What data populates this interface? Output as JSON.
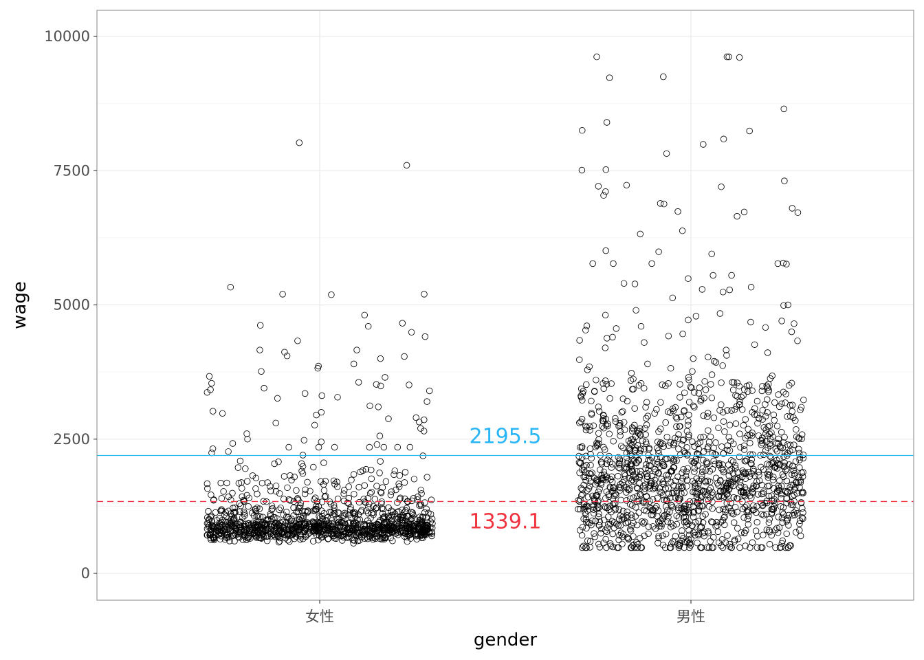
{
  "chart_data": {
    "type": "scatter",
    "subtype": "jitter-strip",
    "title": "",
    "xlabel": "gender",
    "ylabel": "wage",
    "categories": [
      "女性",
      "男性"
    ],
    "ylim": [
      -500,
      10500
    ],
    "yticks": [
      0,
      2500,
      5000,
      7500,
      10000
    ],
    "grid": true,
    "point_style": {
      "shape": "open-circle",
      "color": "#000000"
    },
    "reference_lines": [
      {
        "value": 2195.5,
        "label": "2195.5",
        "color": "#29b6f6",
        "style": "solid"
      },
      {
        "value": 1339.1,
        "label": "1339.1",
        "color": "#f0333f",
        "style": "dashed"
      }
    ],
    "series": [
      {
        "category": "女性",
        "n": 1200,
        "core_range": [
          460,
          2350
        ],
        "dense_band": [
          650,
          950
        ],
        "outliers": [
          8020,
          7600,
          5330,
          5200,
          5200,
          5190,
          4810,
          4660,
          4620,
          4600,
          4490,
          4410,
          4330,
          4160,
          4160,
          4120,
          4050,
          4040,
          4000,
          3900,
          3860,
          3820,
          3760,
          3670,
          3650,
          3560,
          3540,
          3520,
          3510,
          3490,
          3450,
          3420,
          3400,
          3370,
          3350,
          3310,
          3280,
          3260,
          3200,
          3120,
          3100,
          3020,
          3000,
          2980,
          2950,
          2900,
          2880,
          2860,
          2820,
          2800,
          2760,
          2700,
          2650,
          2600,
          2560,
          2500,
          2480,
          2450,
          2420,
          2400
        ]
      },
      {
        "category": "男性",
        "n": 1400,
        "core_range": [
          480,
          3600
        ],
        "dense_band": [
          1000,
          2500
        ],
        "outliers": [
          9620,
          9620,
          9620,
          9610,
          9250,
          9230,
          8650,
          8400,
          8250,
          8240,
          8090,
          7990,
          7820,
          7520,
          7510,
          7310,
          7230,
          7210,
          7200,
          7110,
          7040,
          6890,
          6880,
          6800,
          6740,
          6730,
          6720,
          6650,
          6380,
          6320,
          6010,
          5990,
          5950,
          5780,
          5770,
          5770,
          5770,
          5770,
          5760,
          5550,
          5550,
          5490,
          5400,
          5390,
          5330,
          5290,
          5280,
          5240,
          5130,
          5000,
          4990,
          4900,
          4840,
          4810,
          4790,
          4720,
          4700,
          4680,
          4650,
          4610,
          4600,
          4580,
          4560,
          4530,
          4500,
          4460,
          4420,
          4400,
          4380,
          4340,
          4330,
          4300,
          4260,
          4200,
          4160,
          4110,
          4060,
          4030,
          4000,
          3980,
          3950,
          3930,
          3900,
          3870,
          3850,
          3820,
          3790,
          3760,
          3730,
          3700,
          3680,
          3650,
          3630,
          3620
        ]
      }
    ]
  }
}
